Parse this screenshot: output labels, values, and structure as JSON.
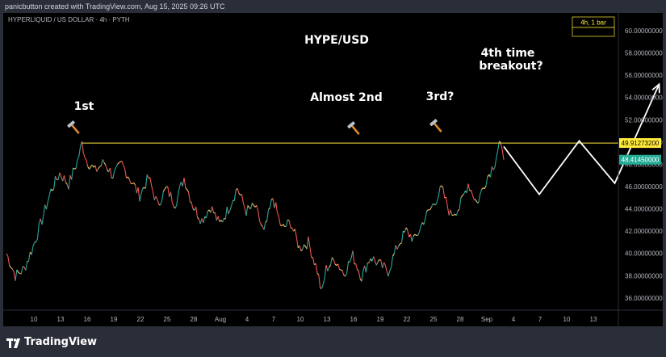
{
  "header": {
    "attribution": "panicbutton created with TradingView.com, Aug 15, 2025 09:26 UTC"
  },
  "footer": {
    "brand": "TradingView"
  },
  "chart_data": {
    "type": "line",
    "symbol_line": "HYPERLIQUID / US DOLLAR · 4h · PYTH",
    "title": "HYPE/USD",
    "interval_box": "4h, 1 bar",
    "xlabel": "",
    "ylabel": "",
    "x_tick_labels": [
      "10",
      "13",
      "16",
      "19",
      "22",
      "25",
      "28",
      "Aug",
      "4",
      "7",
      "10",
      "13",
      "16",
      "19",
      "22",
      "25",
      "28",
      "Sep",
      "4",
      "7",
      "10",
      "13"
    ],
    "ylim": [
      34.9,
      61.6
    ],
    "y_ticks": [
      {
        "value": 60,
        "label": "60.00000000"
      },
      {
        "value": 58,
        "label": "58.00000000"
      },
      {
        "value": 56,
        "label": "56.00000000"
      },
      {
        "value": 54,
        "label": "54.00000000"
      },
      {
        "value": 52,
        "label": "52.00000000"
      },
      {
        "value": 50,
        "label": "50.00000000"
      },
      {
        "value": 48,
        "label": "48.00000000"
      },
      {
        "value": 46,
        "label": "46.00000000"
      },
      {
        "value": 44,
        "label": "44.00000000"
      },
      {
        "value": 42,
        "label": "42.00000000"
      },
      {
        "value": 40,
        "label": "40.00000000"
      },
      {
        "value": 38,
        "label": "38.00000000"
      },
      {
        "value": 36,
        "label": "36.00000000"
      }
    ],
    "resistance_level": {
      "value": 49.912732,
      "label": "49.91273200",
      "color": "#ffeb3b"
    },
    "last_price": {
      "value": 48.4145,
      "label": "48.41450000",
      "color": "#22ab94"
    },
    "price_series_days": [
      [
        0,
        40.0
      ],
      [
        1,
        38.0
      ],
      [
        2,
        38.6
      ],
      [
        3,
        40.6
      ],
      [
        4,
        43.0
      ],
      [
        5,
        45.6
      ],
      [
        6,
        47.2
      ],
      [
        7,
        46.2
      ],
      [
        8,
        48.3
      ],
      [
        8.5,
        49.9
      ],
      [
        9,
        48.4
      ],
      [
        10,
        47.4
      ],
      [
        11,
        48.2
      ],
      [
        12,
        47.0
      ],
      [
        13,
        48.0
      ],
      [
        14,
        46.6
      ],
      [
        15,
        45.2
      ],
      [
        16,
        46.8
      ],
      [
        17,
        44.4
      ],
      [
        18,
        45.8
      ],
      [
        19,
        44.5
      ],
      [
        20,
        46.8
      ],
      [
        21,
        44.3
      ],
      [
        22,
        43.0
      ],
      [
        23,
        44.2
      ],
      [
        24,
        42.6
      ],
      [
        25,
        44.0
      ],
      [
        26,
        45.9
      ],
      [
        27,
        43.8
      ],
      [
        28,
        44.2
      ],
      [
        29,
        41.8
      ],
      [
        30,
        45.0
      ],
      [
        31,
        42.2
      ],
      [
        32,
        42.8
      ],
      [
        33,
        40.5
      ],
      [
        34,
        41.0
      ],
      [
        35,
        38.5
      ],
      [
        35.5,
        36.4
      ],
      [
        36,
        38.6
      ],
      [
        37,
        39.5
      ],
      [
        38,
        38.2
      ],
      [
        39,
        39.8
      ],
      [
        40,
        37.9
      ],
      [
        41,
        39.7
      ],
      [
        42,
        39.0
      ],
      [
        43,
        38.4
      ],
      [
        44,
        40.6
      ],
      [
        45,
        42.0
      ],
      [
        46,
        41.2
      ],
      [
        47,
        43.0
      ],
      [
        48,
        44.3
      ],
      [
        49,
        45.8
      ],
      [
        50,
        43.5
      ],
      [
        51,
        44.1
      ],
      [
        52,
        46.3
      ],
      [
        53,
        44.5
      ],
      [
        54,
        46.6
      ],
      [
        55,
        48.2
      ],
      [
        55.5,
        49.9
      ],
      [
        56,
        48.41
      ]
    ],
    "projection_path_days": [
      [
        56,
        49.6
      ],
      [
        60,
        45.3
      ],
      [
        64.5,
        50.1
      ],
      [
        68.5,
        46.3
      ],
      [
        73.5,
        55.2
      ]
    ],
    "annotations": [
      {
        "text": "1st",
        "icon": "hammer-icon"
      },
      {
        "text": "Almost 2nd",
        "icon": "hammer-icon"
      },
      {
        "text": "3rd?",
        "icon": "hammer-icon"
      },
      {
        "text": "4th time breakout?"
      }
    ],
    "colors": {
      "background": "#000000",
      "price_up": "#26a69a",
      "price_down": "#ef5350",
      "price_mid": "#f5c56b",
      "projection": "#ffffff",
      "axis_text": "#b2b5be",
      "hammer_handle": "#e08a2e",
      "hammer_head": "#b8c0c8"
    },
    "grid": false,
    "legend": "none"
  }
}
